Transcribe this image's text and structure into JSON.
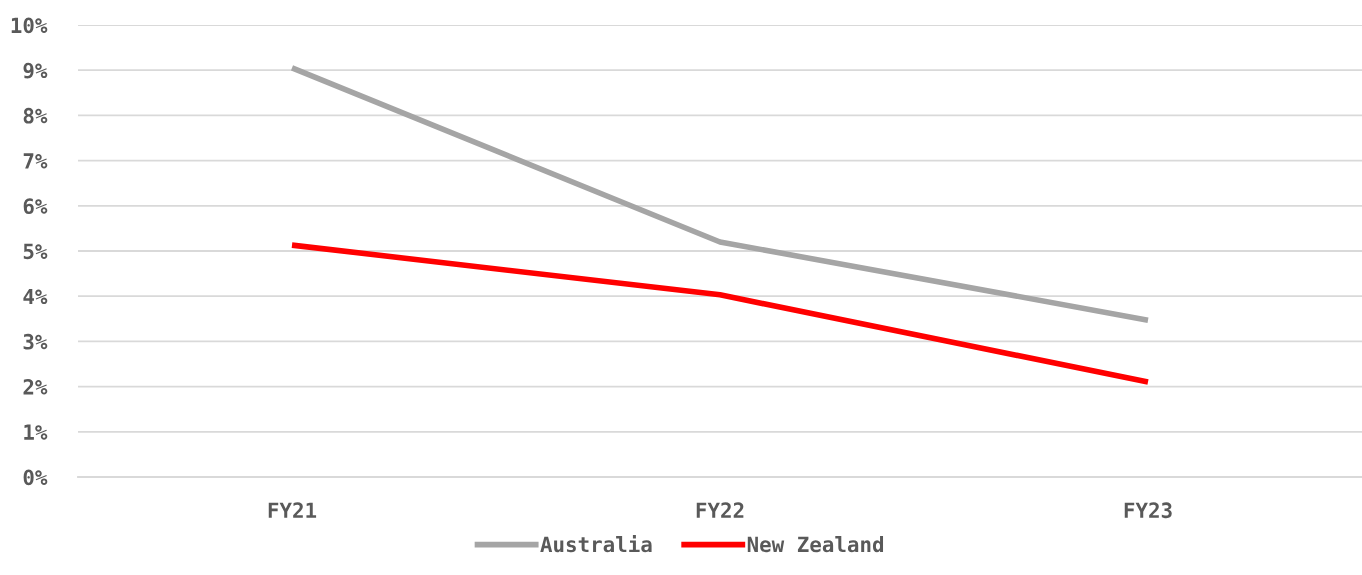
{
  "chart_data": {
    "type": "line",
    "categories": [
      "FY21",
      "FY22",
      "FY23"
    ],
    "series": [
      {
        "name": "Australia",
        "color": "#a5a5a5",
        "values": [
          9.05,
          5.2,
          3.47
        ]
      },
      {
        "name": "New Zealand",
        "color": "#ff0000",
        "values": [
          5.13,
          4.03,
          2.1
        ]
      }
    ],
    "ylim": [
      0,
      10
    ],
    "yticks": [
      {
        "value": 0,
        "label": "0%"
      },
      {
        "value": 1,
        "label": "1%"
      },
      {
        "value": 2,
        "label": "2%"
      },
      {
        "value": 3,
        "label": "3%"
      },
      {
        "value": 4,
        "label": "4%"
      },
      {
        "value": 5,
        "label": "5%"
      },
      {
        "value": 6,
        "label": "6%"
      },
      {
        "value": 7,
        "label": "7%"
      },
      {
        "value": 8,
        "label": "8%"
      },
      {
        "value": 9,
        "label": "9%"
      },
      {
        "value": 10,
        "label": "10%"
      }
    ],
    "grid": "y",
    "legend": "bottom",
    "marker": "none",
    "line_style": "solid"
  }
}
